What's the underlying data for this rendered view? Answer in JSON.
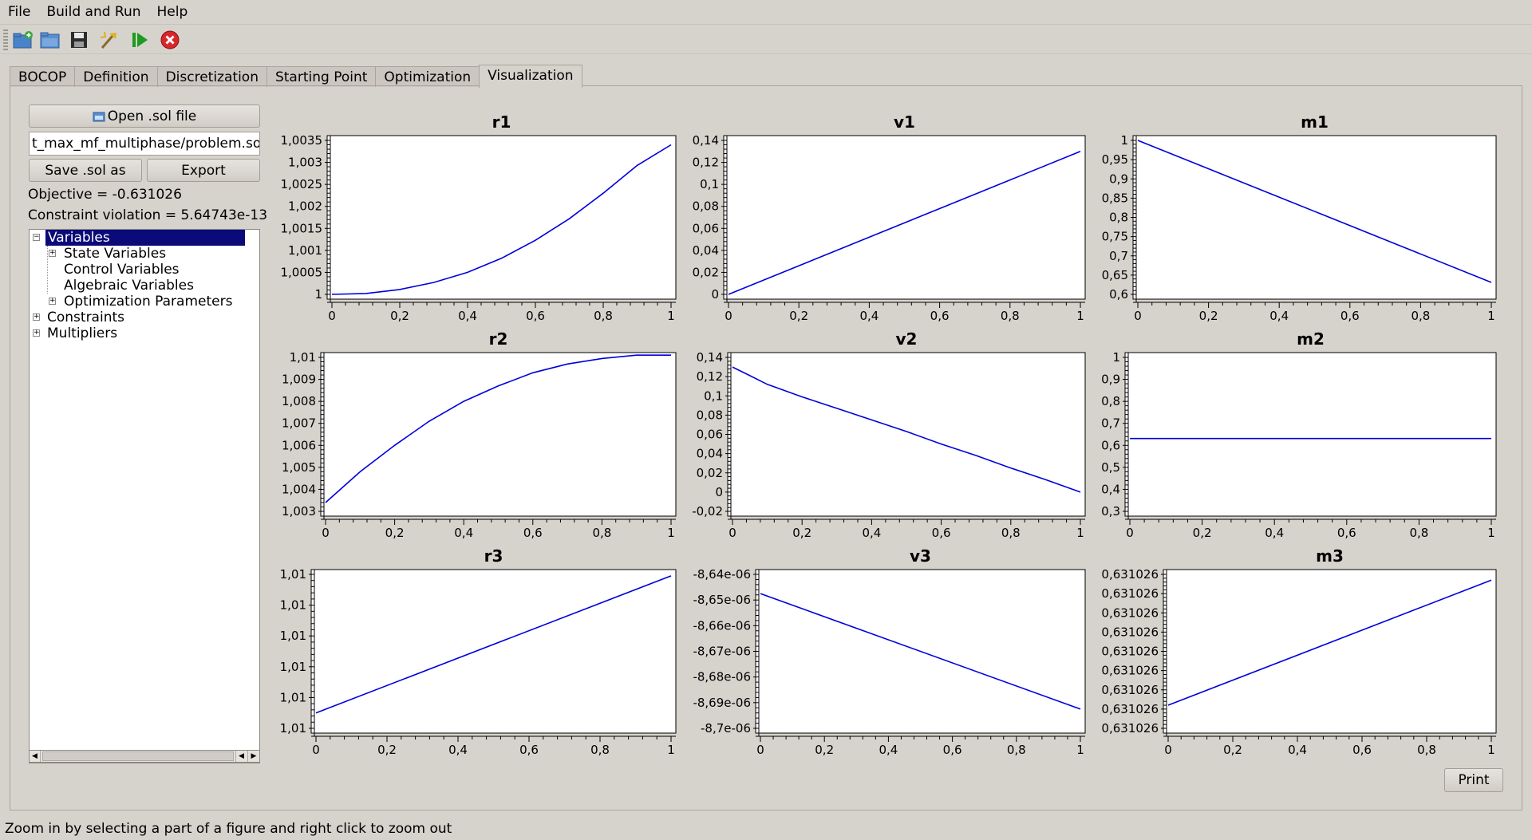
{
  "menu": [
    "File",
    "Build and Run",
    "Help"
  ],
  "tabs": [
    {
      "label": "BOCOP",
      "active": false
    },
    {
      "label": "Definition",
      "active": false
    },
    {
      "label": "Discretization",
      "active": false
    },
    {
      "label": "Starting Point",
      "active": false
    },
    {
      "label": "Optimization",
      "active": false
    },
    {
      "label": "Visualization",
      "active": true
    }
  ],
  "toolbar": {
    "icons": [
      "new-project-icon",
      "open-folder-icon",
      "save-icon",
      "build-icon",
      "run-icon",
      "stop-icon"
    ]
  },
  "left": {
    "open_label": "Open .sol file",
    "file_path": "t_max_mf_multiphase/problem.sol",
    "save_as_label": "Save .sol as",
    "export_label": "Export",
    "objective": "Objective = -0.631026",
    "constraint": "Constraint violation = 5.64743e-13"
  },
  "tree": {
    "variables": "Variables",
    "state": "State Variables",
    "control": "Control Variables",
    "algebraic": "Algebraic Variables",
    "optimization": "Optimization Parameters",
    "constraints": "Constraints",
    "multipliers": "Multipliers"
  },
  "print_label": "Print",
  "status": "Zoom in by selecting a part of a figure and right click to zoom out",
  "colors": {
    "curve": "#0000dd",
    "background": "#d6d2cc"
  },
  "chart_data": [
    {
      "type": "line",
      "title": "r1",
      "xlim": [
        0,
        1
      ],
      "ylim": [
        1,
        1.0035
      ],
      "xticks": [
        "0",
        "0,2",
        "0,4",
        "0,6",
        "0,8",
        "1"
      ],
      "yticks": [
        "1",
        "1,0005",
        "1,001",
        "1,0015",
        "1,002",
        "1,0025",
        "1,003",
        "1,0035"
      ],
      "x": [
        0,
        0.1,
        0.2,
        0.3,
        0.4,
        0.5,
        0.6,
        0.7,
        0.8,
        0.9,
        1
      ],
      "y": [
        1.0,
        1.00002,
        1.00011,
        1.00027,
        1.0005,
        1.00082,
        1.00123,
        1.00172,
        1.0023,
        1.00293,
        1.0034
      ]
    },
    {
      "type": "line",
      "title": "v1",
      "xlim": [
        0,
        1
      ],
      "ylim": [
        0,
        0.14
      ],
      "xticks": [
        "0",
        "0,2",
        "0,4",
        "0,6",
        "0,8",
        "1"
      ],
      "yticks": [
        "0",
        "0,02",
        "0,04",
        "0,06",
        "0,08",
        "0,1",
        "0,12",
        "0,14"
      ],
      "x": [
        0,
        1
      ],
      "y": [
        0,
        0.13
      ]
    },
    {
      "type": "line",
      "title": "m1",
      "xlim": [
        0,
        1
      ],
      "ylim": [
        0.6,
        1
      ],
      "xticks": [
        "0",
        "0,2",
        "0,4",
        "0,6",
        "0,8",
        "1"
      ],
      "yticks": [
        "0,6",
        "0,65",
        "0,7",
        "0,75",
        "0,8",
        "0,85",
        "0,9",
        "0,95",
        "1"
      ],
      "x": [
        0,
        1
      ],
      "y": [
        1,
        0.631
      ]
    },
    {
      "type": "line",
      "title": "r2",
      "xlim": [
        0,
        1
      ],
      "ylim": [
        1.003,
        1.01
      ],
      "xticks": [
        "0",
        "0,2",
        "0,4",
        "0,6",
        "0,8",
        "1"
      ],
      "yticks": [
        "1,003",
        "1,004",
        "1,005",
        "1,006",
        "1,007",
        "1,008",
        "1,009",
        "1,01"
      ],
      "x": [
        0,
        0.1,
        0.2,
        0.3,
        0.4,
        0.5,
        0.6,
        0.7,
        0.8,
        0.9,
        1
      ],
      "y": [
        1.0034,
        1.0048,
        1.006,
        1.0071,
        1.008,
        1.0087,
        1.0093,
        1.0097,
        1.00995,
        1.0101,
        1.0101
      ]
    },
    {
      "type": "line",
      "title": "v2",
      "xlim": [
        0,
        1
      ],
      "ylim": [
        -0.02,
        0.14
      ],
      "xticks": [
        "0",
        "0,2",
        "0,4",
        "0,6",
        "0,8",
        "1"
      ],
      "yticks": [
        "-0,02",
        "0",
        "0,02",
        "0,04",
        "0,06",
        "0,08",
        "0,1",
        "0,12",
        "0,14"
      ],
      "x": [
        0,
        0.05,
        0.1,
        0.2,
        0.3,
        0.4,
        0.5,
        0.6,
        0.7,
        0.8,
        0.9,
        1
      ],
      "y": [
        0.13,
        0.121,
        0.112,
        0.099,
        0.087,
        0.075,
        0.063,
        0.05,
        0.038,
        0.025,
        0.013,
        0.0
      ]
    },
    {
      "type": "line",
      "title": "m2",
      "xlim": [
        0,
        1
      ],
      "ylim": [
        0.3,
        1
      ],
      "xticks": [
        "0",
        "0,2",
        "0,4",
        "0,6",
        "0,8",
        "1"
      ],
      "yticks": [
        "0,3",
        "0,4",
        "0,5",
        "0,6",
        "0,7",
        "0,8",
        "0,9",
        "1"
      ],
      "x": [
        0,
        1
      ],
      "y": [
        0.631,
        0.631
      ]
    },
    {
      "type": "line",
      "title": "r3",
      "xlim": [
        0,
        1
      ],
      "ylim": [
        0,
        5
      ],
      "xticks": [
        "0",
        "0,2",
        "0,4",
        "0,6",
        "0,8",
        "1"
      ],
      "yticks": [
        "1,01",
        "1,01",
        "1,01",
        "1,01",
        "1,01",
        "1,01"
      ],
      "x": [
        0,
        1
      ],
      "y": [
        0.5,
        4.95
      ]
    },
    {
      "type": "line",
      "title": "v3",
      "xlim": [
        0,
        1
      ],
      "ylim": [
        -8.7e-06,
        -8.64e-06
      ],
      "xticks": [
        "0",
        "0,2",
        "0,4",
        "0,6",
        "0,8",
        "1"
      ],
      "yticks": [
        "-8,7e-06",
        "-8,69e-06",
        "-8,68e-06",
        "-8,67e-06",
        "-8,66e-06",
        "-8,65e-06",
        "-8,64e-06"
      ],
      "x": [
        0,
        1
      ],
      "y": [
        -8.6475e-06,
        -8.6925e-06
      ]
    },
    {
      "type": "line",
      "title": "m3",
      "xlim": [
        0,
        1
      ],
      "ylim": [
        0,
        8
      ],
      "xticks": [
        "0",
        "0,2",
        "0,4",
        "0,6",
        "0,8",
        "1"
      ],
      "yticks": [
        "0,631026",
        "0,631026",
        "0,631026",
        "0,631026",
        "0,631026",
        "0,631026",
        "0,631026",
        "0,631026",
        "0,631026"
      ],
      "x": [
        0,
        1
      ],
      "y": [
        1.2,
        7.7
      ]
    }
  ]
}
